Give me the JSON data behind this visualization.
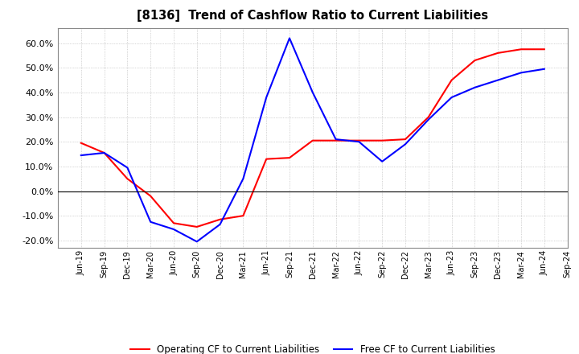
{
  "title": "[8136]  Trend of Cashflow Ratio to Current Liabilities",
  "x_labels": [
    "Jun-19",
    "Sep-19",
    "Dec-19",
    "Mar-20",
    "Jun-20",
    "Sep-20",
    "Dec-20",
    "Mar-21",
    "Jun-21",
    "Sep-21",
    "Dec-21",
    "Mar-22",
    "Jun-22",
    "Sep-22",
    "Dec-22",
    "Mar-23",
    "Jun-23",
    "Sep-23",
    "Dec-23",
    "Mar-24",
    "Jun-24",
    "Sep-24"
  ],
  "operating_cf": [
    19.5,
    15.5,
    5.0,
    -2.0,
    -13.0,
    -14.5,
    -11.5,
    -10.0,
    13.0,
    13.5,
    20.5,
    20.5,
    20.5,
    20.5,
    21.0,
    30.0,
    45.0,
    53.0,
    56.0,
    57.5,
    57.5,
    null
  ],
  "free_cf": [
    14.5,
    15.5,
    9.5,
    -12.5,
    -15.5,
    -20.5,
    -13.5,
    5.0,
    38.0,
    62.0,
    40.0,
    21.0,
    20.0,
    12.0,
    19.0,
    29.0,
    38.0,
    42.0,
    45.0,
    48.0,
    49.5,
    null
  ],
  "ylim_min": -23.0,
  "ylim_max": 66.0,
  "yticks": [
    -20.0,
    -10.0,
    0.0,
    10.0,
    20.0,
    30.0,
    40.0,
    50.0,
    60.0
  ],
  "operating_color": "#ff0000",
  "free_color": "#0000ff",
  "background_color": "#ffffff",
  "plot_bg_color": "#ffffff",
  "grid_color": "#b0b0b0",
  "legend_operating": "Operating CF to Current Liabilities",
  "legend_free": "Free CF to Current Liabilities"
}
